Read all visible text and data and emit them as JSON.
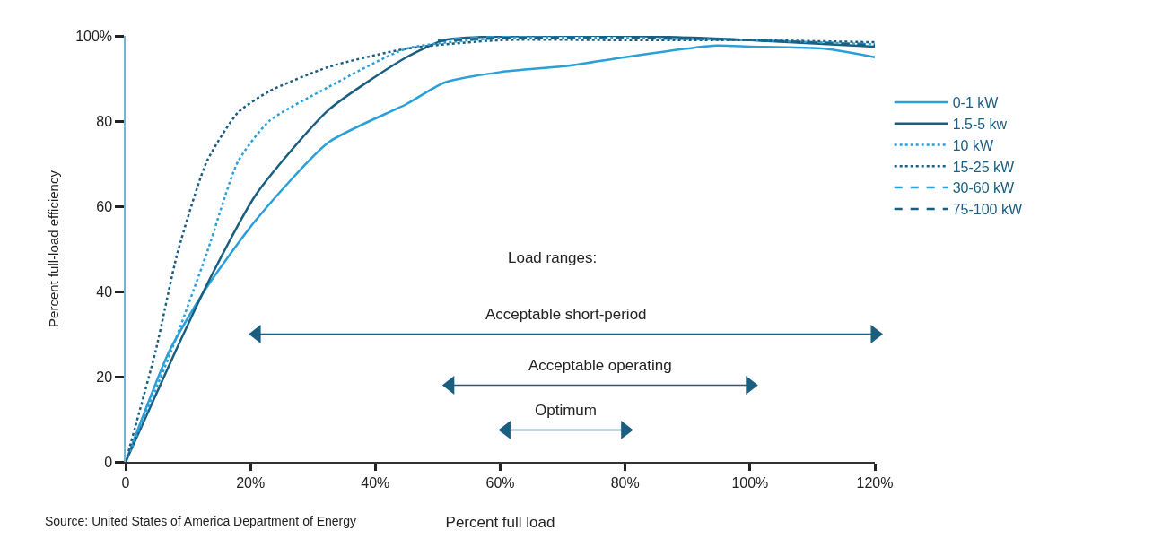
{
  "chart_data": {
    "type": "line",
    "xlabel": "Percent full load",
    "ylabel": "Percent full-load efficiency",
    "xlim": [
      0,
      120
    ],
    "ylim": [
      0,
      100
    ],
    "xticks": [
      0,
      {
        "value": 20,
        "label": "20%"
      },
      {
        "value": 40,
        "label": "40%"
      },
      {
        "value": 60,
        "label": "60%"
      },
      {
        "value": 80,
        "label": "80%"
      },
      {
        "value": 100,
        "label": "100%"
      },
      {
        "value": 120,
        "label": "120%"
      }
    ],
    "yticks": [
      0,
      20,
      40,
      60,
      80,
      {
        "value": 100,
        "label": "100%"
      }
    ],
    "legend": "right",
    "series": [
      {
        "name": "0-1 kW",
        "color": "#2a9fd8",
        "line_style": "solid",
        "x": [
          0,
          7,
          13,
          21,
          32.5,
          45,
          51,
          60,
          71,
          80,
          94,
          100,
          112,
          120
        ],
        "values": [
          0,
          26,
          41,
          57,
          75,
          84,
          89,
          91.5,
          93,
          95,
          97.7,
          97.5,
          97,
          95
        ]
      },
      {
        "name": "1.5-5 kw",
        "color": "#1a5e80",
        "line_style": "solid",
        "x": [
          0,
          8,
          13.5,
          21,
          32.5,
          45,
          51,
          58,
          80,
          100,
          120
        ],
        "values": [
          0,
          26,
          43,
          63,
          82.6,
          95,
          99,
          99.8,
          100,
          99,
          97.5
        ]
      },
      {
        "name": "10 kW",
        "color": "#2a9fd8",
        "line_style": "dotted",
        "x": [
          0,
          7.3,
          13,
          18,
          23,
          32.5,
          45,
          60,
          80,
          100,
          120
        ],
        "values": [
          0,
          26,
          49,
          70.5,
          80,
          88,
          97,
          99.5,
          99.5,
          99,
          98
        ]
      },
      {
        "name": "15-25 kW",
        "color": "#1a5e80",
        "line_style": "dotted",
        "x": [
          0,
          4.8,
          8.3,
          13,
          18,
          23,
          32.5,
          45,
          60,
          80,
          100,
          120
        ],
        "values": [
          0,
          26,
          49,
          70.5,
          82,
          87,
          92.7,
          97,
          99,
          99,
          99,
          98.5
        ]
      },
      {
        "name": "30-60 kW",
        "color": "#2a9fd8",
        "line_style": "dashed",
        "x": [
          50,
          60,
          80,
          100,
          120
        ],
        "values": [
          99,
          99.8,
          99.5,
          99,
          98
        ]
      },
      {
        "name": "75-100 kW",
        "color": "#1a5e80",
        "line_style": "dashed",
        "x": [
          50,
          60,
          80,
          100,
          120
        ],
        "values": [
          98.8,
          99.5,
          99.7,
          99,
          97.8
        ]
      },
      {
        "color": "#1a5e80",
        "marker": "triangle",
        "x": [
          21,
          120
        ],
        "values": [
          30,
          30
        ]
      },
      {
        "color": "#1a5e80",
        "marker": "triangle",
        "x": [
          52,
          100
        ],
        "values": [
          18,
          18
        ]
      },
      {
        "color": "#1a5e80",
        "marker": "triangle",
        "x": [
          61,
          80
        ],
        "values": [
          7.5,
          7.5
        ]
      }
    ],
    "annotations": [
      "Load ranges:",
      "Acceptable short-period",
      "Acceptable operating",
      "Optimum",
      "Source: United States of America Department of Energy"
    ]
  }
}
